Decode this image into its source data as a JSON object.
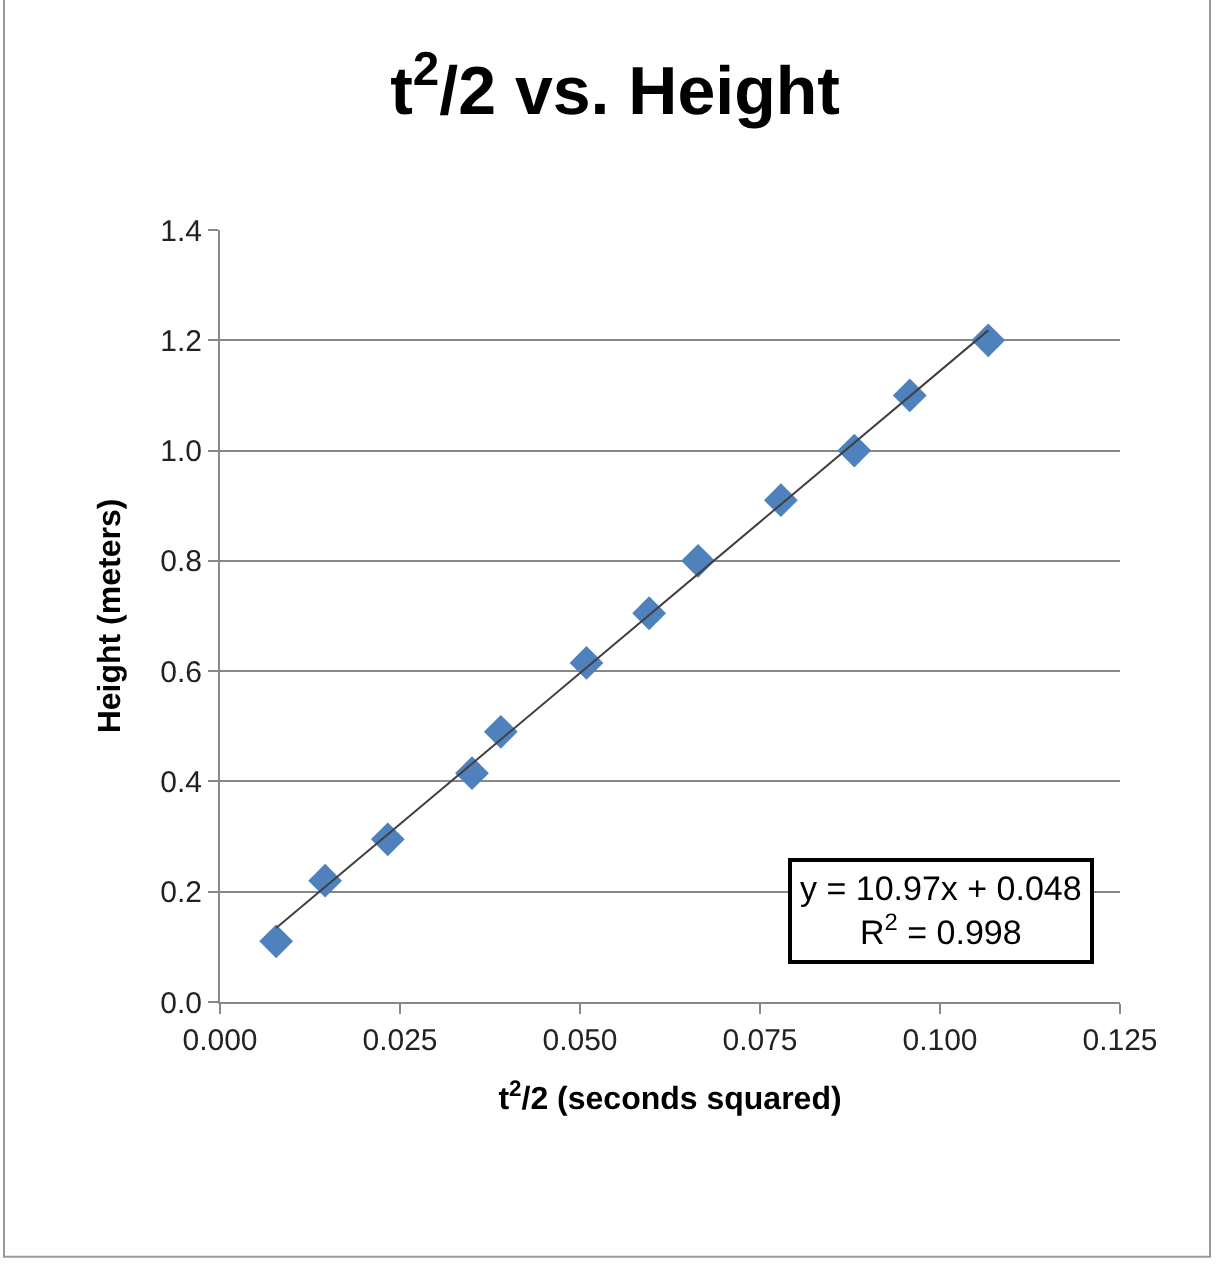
{
  "chart_data": {
    "type": "scatter",
    "title": "t$^{2}$/2 vs. Height",
    "xlabel": "t$^{2}$/2 (seconds squared)",
    "ylabel": "Height (meters)",
    "series": [
      {
        "color": "#4f81bd",
        "marker": "diamond",
        "x": [
          0.0078,
          0.0146,
          0.0233,
          0.035,
          0.039,
          0.0509,
          0.0596,
          0.0664,
          0.0779,
          0.0881,
          0.0958,
          0.1067
        ],
        "values": [
          0.11,
          0.22,
          0.295,
          0.415,
          0.49,
          0.615,
          0.705,
          0.8,
          0.91,
          1.0,
          1.1,
          1.2
        ]
      },
      {
        "type": "line",
        "color": "#404040",
        "marker": "none",
        "line_style": "solid",
        "x": [
          0.0078,
          0.1067
        ],
        "values": [
          0.134,
          1.218
        ]
      }
    ],
    "xlim": [
      0,
      0.125
    ],
    "xticks": [
      {
        "value": 0,
        "label": "0.000"
      },
      {
        "value": 0.025,
        "label": "0.025"
      },
      {
        "value": 0.05,
        "label": "0.050"
      },
      {
        "value": 0.075,
        "label": "0.075"
      },
      {
        "value": 0.1,
        "label": "0.100"
      },
      {
        "value": 0.125,
        "label": "0.125"
      }
    ],
    "ylim": [
      0,
      1.4
    ],
    "yticks": [
      {
        "value": 0,
        "label": "0.0"
      },
      {
        "value": 0.2,
        "label": "0.2"
      },
      {
        "value": 0.4,
        "label": "0.4"
      },
      {
        "value": 0.6,
        "label": "0.6"
      },
      {
        "value": 0.8,
        "label": "0.8"
      },
      {
        "value": 1.0,
        "label": "1.0"
      },
      {
        "value": 1.2,
        "label": "1.2"
      },
      {
        "value": 1.4,
        "label": "1.4"
      }
    ],
    "grid": "y",
    "annotations": [
      "y = 10.97x + 0.048\nR$^{2}$ = 0.998"
    ]
  }
}
